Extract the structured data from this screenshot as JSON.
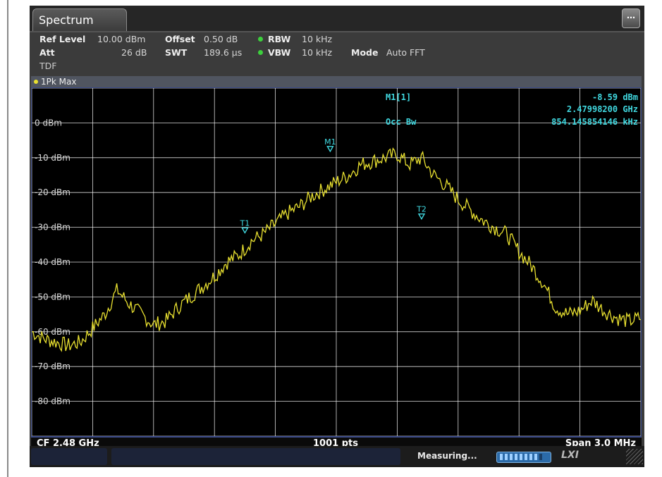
{
  "tab": {
    "label": "Spectrum"
  },
  "settings": {
    "ref_level_label": "Ref Level",
    "ref_level_value": "10.00 dBm",
    "att_label": "Att",
    "att_value": "26 dB",
    "tdf_label": "TDF",
    "offset_label": "Offset",
    "offset_value": "0.50 dB",
    "swt_label": "SWT",
    "swt_value": "189.6 µs",
    "rbw_label": "RBW",
    "rbw_value": "10 kHz",
    "vbw_label": "VBW",
    "vbw_value": "10 kHz",
    "mode_label": "Mode",
    "mode_value": "Auto FFT"
  },
  "trace_label": "1Pk Max",
  "marker_info": {
    "name": "M1[1]",
    "level": "-8.59 dBm",
    "freq": "2.47998200 GHz",
    "occbw_label": "Occ Bw",
    "occbw_value": "854.145854146 kHz"
  },
  "footer": {
    "cf": "CF 2.48 GHz",
    "pts": "1001 pts",
    "span": "Span 3.0 MHz"
  },
  "status": {
    "text": "Measuring...",
    "logo": "LXI"
  },
  "colors": {
    "trace": "#e8e030",
    "marker": "#40d8e0",
    "grid": "#ffffff",
    "background": "#000000"
  },
  "chart_data": {
    "type": "line",
    "ylim": [
      -90,
      10
    ],
    "y_tick_labels": [
      "0 dBm",
      "-10 dBm",
      "-20 dBm",
      "-30 dBm",
      "-40 dBm",
      "-50 dBm",
      "-60 dBm",
      "-70 dBm",
      "-80 dBm"
    ],
    "grid": true,
    "series": [
      {
        "x": [
          0,
          2,
          4,
          6,
          8,
          10,
          12,
          14,
          16,
          18,
          20,
          22,
          24,
          26,
          28,
          30,
          32,
          34,
          36,
          38,
          40,
          42,
          44,
          46,
          48,
          50,
          52,
          54,
          56,
          58,
          60,
          62,
          64,
          66,
          68,
          70,
          72,
          74,
          76,
          78,
          80,
          82,
          84,
          86,
          88,
          90,
          92,
          94,
          96,
          98,
          100
        ],
        "y": [
          -60,
          -62,
          -63,
          -64,
          -63,
          -59,
          -55,
          -48,
          -52,
          -55,
          -58,
          -57,
          -53,
          -50,
          -47,
          -44,
          -40,
          -38,
          -34,
          -32,
          -29,
          -26,
          -24,
          -21,
          -19,
          -17,
          -15,
          -12,
          -11,
          -10,
          -9,
          -12,
          -10,
          -15,
          -18,
          -22,
          -25,
          -28,
          -30,
          -32,
          -37,
          -41,
          -46,
          -53,
          -55,
          -54,
          -51,
          -54,
          -56,
          -57,
          -56
        ]
      }
    ],
    "markers": [
      {
        "label": "M1",
        "x": 49,
        "y": -8.59
      },
      {
        "label": "T1",
        "x": 35,
        "y": -32
      },
      {
        "label": "T2",
        "x": 64,
        "y": -28
      }
    ]
  }
}
